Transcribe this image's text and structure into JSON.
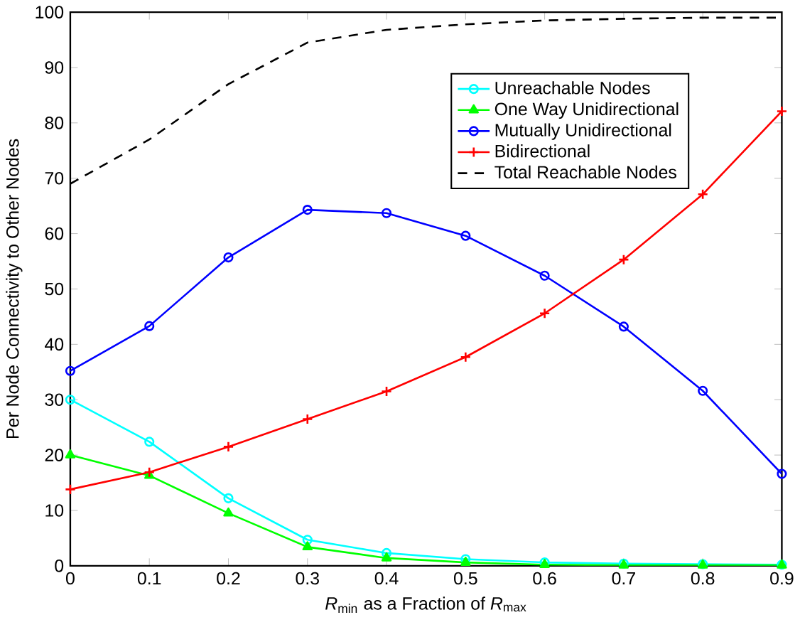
{
  "chart_data": {
    "type": "line",
    "xlabel": "*R*$_{min}$ as a Fraction of *R*$_{max}$",
    "ylabel": "Per Node Connectivity to Other Nodes",
    "x": [
      0,
      0.1,
      0.2,
      0.3,
      0.4,
      0.5,
      0.6,
      0.7,
      0.8,
      0.9
    ],
    "xlim": [
      0,
      0.9
    ],
    "xticks": [
      0,
      0.1,
      0.2,
      0.3,
      0.4,
      0.5,
      0.6,
      0.7,
      0.8,
      0.9
    ],
    "ylim": [
      0,
      100
    ],
    "yticks": [
      0,
      10,
      20,
      30,
      40,
      50,
      60,
      70,
      80,
      90,
      100
    ],
    "grid": false,
    "legend": "top right",
    "series": [
      {
        "name": "Unreachable Nodes",
        "color": "#00ffff",
        "marker": "circle",
        "line_style": "solid",
        "values": [
          30,
          22.4,
          12.2,
          4.7,
          2.3,
          1.2,
          0.6,
          0.4,
          0.3,
          0.2
        ]
      },
      {
        "name": "One Way Unidirectional",
        "color": "#00ff00",
        "marker": "triangle",
        "line_style": "solid",
        "values": [
          20,
          16.3,
          9.5,
          3.4,
          1.4,
          0.6,
          0.2,
          0.1,
          0.1,
          0.1
        ]
      },
      {
        "name": "Mutually Unidirectional",
        "color": "#0000ff",
        "marker": "circle",
        "line_style": "solid",
        "values": [
          35.2,
          43.3,
          55.7,
          64.3,
          63.7,
          59.6,
          52.4,
          43.2,
          31.6,
          16.6
        ]
      },
      {
        "name": "Bidirectional",
        "color": "#ff0000",
        "marker": "cross",
        "line_style": "solid",
        "values": [
          13.8,
          16.9,
          21.5,
          26.5,
          31.5,
          37.7,
          45.6,
          55.3,
          67.1,
          82.1
        ]
      },
      {
        "name": "Total Reachable Nodes",
        "color": "#000000",
        "marker": "none",
        "line_style": "dashed",
        "values": [
          69,
          77,
          87,
          94.5,
          96.8,
          97.8,
          98.5,
          98.8,
          99,
          99
        ]
      }
    ]
  }
}
